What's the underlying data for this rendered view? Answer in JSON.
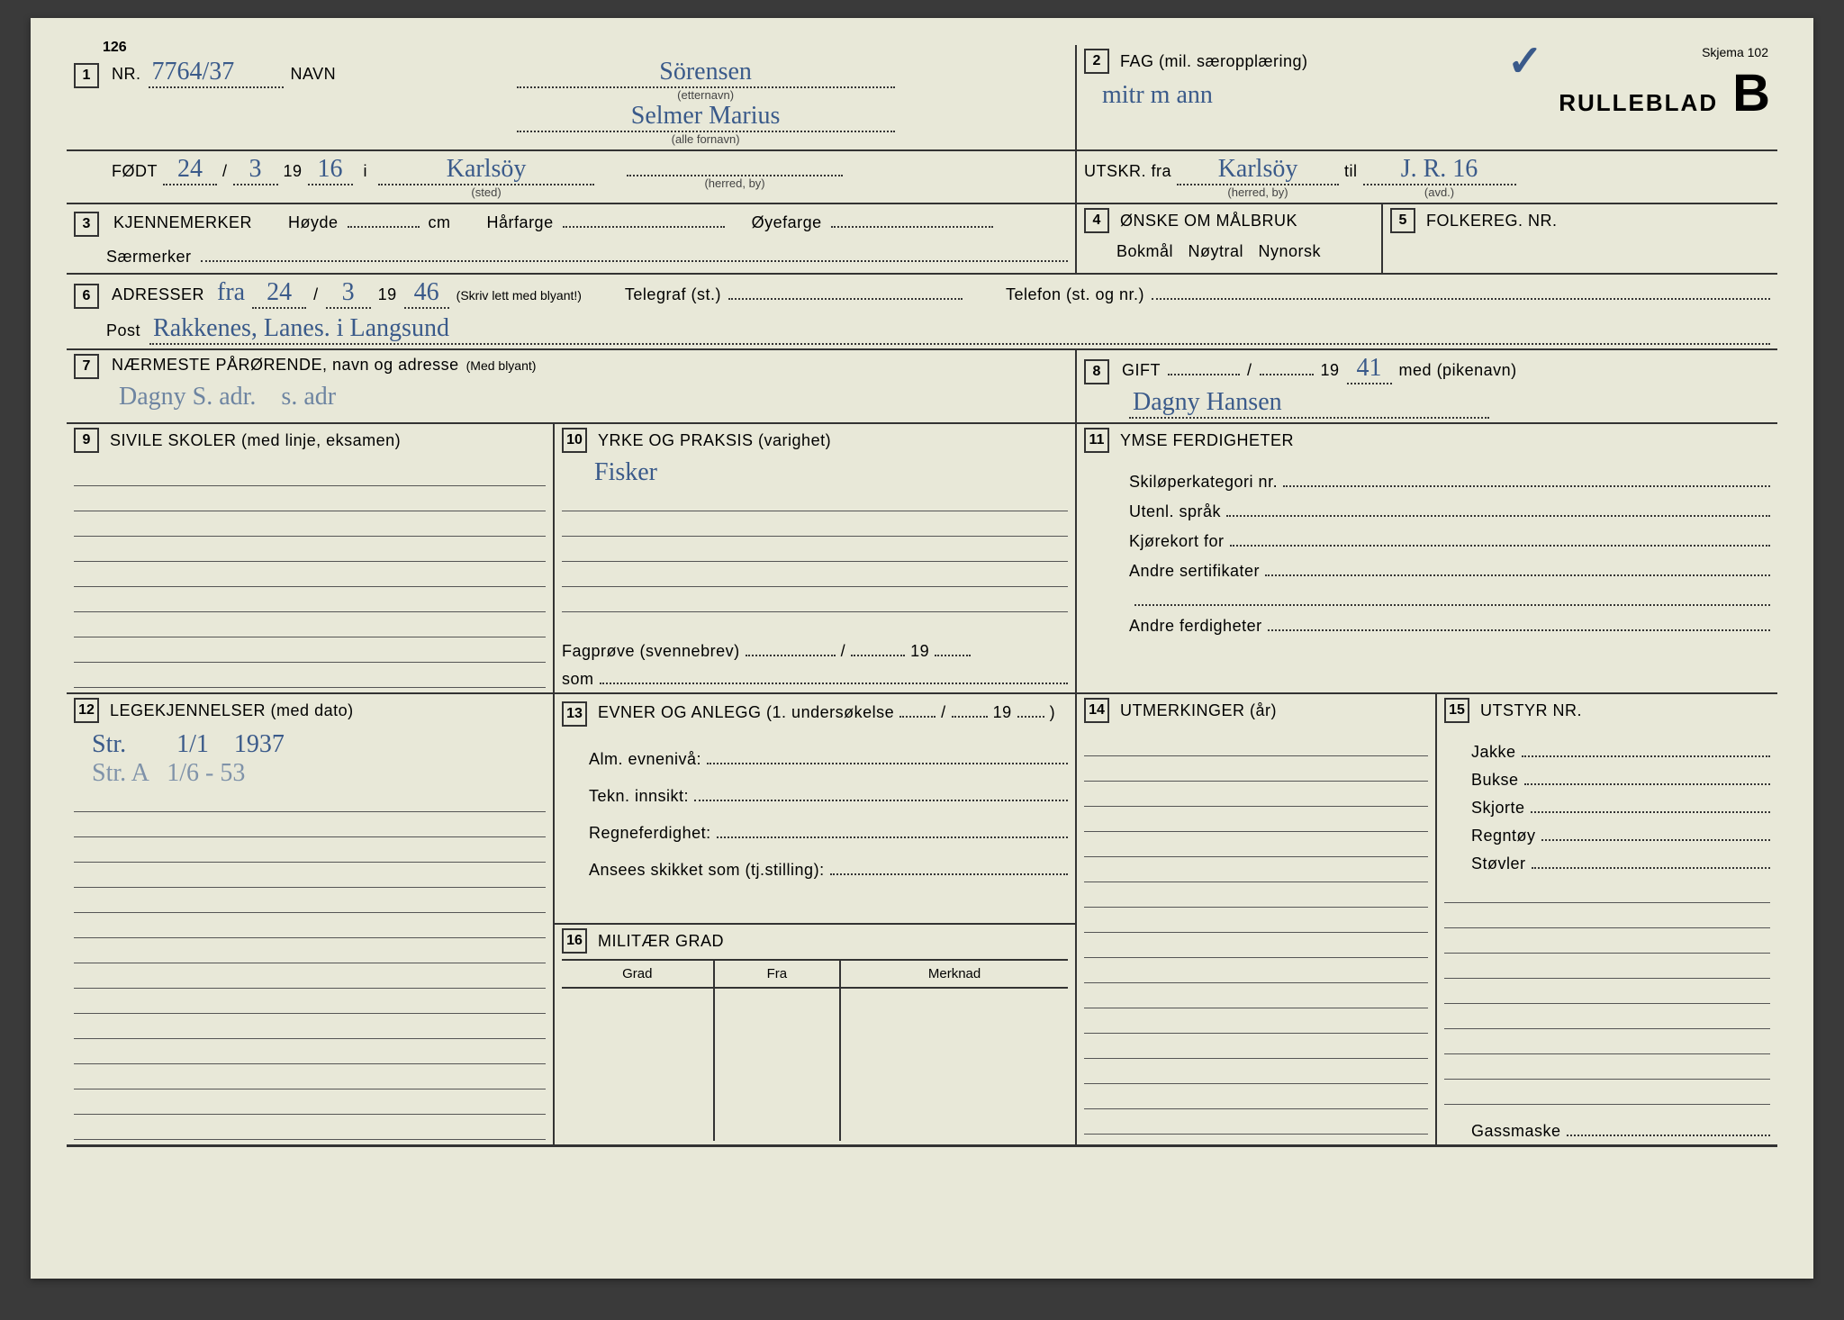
{
  "header": {
    "nr_small": "126",
    "nr_label": "NR.",
    "nr_value": "7764/37",
    "navn_label": "NAVN",
    "etternavn": "Sörensen",
    "etternavn_sub": "(etternavn)",
    "fornavn": "Selmer Marius",
    "fornavn_sub": "(alle fornavn)",
    "skjema": "Skjema 102",
    "rulleblad": "RULLEBLAD",
    "b": "B"
  },
  "s1": {
    "fodt_label": "FØDT",
    "fodt_day": "24",
    "fodt_month": "3",
    "fodt_year_prefix": "19",
    "fodt_year": "16",
    "i_label": "i",
    "sted": "Karlsöy",
    "sted_sub": "(sted)",
    "herred_sub": "(herred, by)"
  },
  "s2": {
    "fag_label": "FAG (mil. særopplæring)",
    "fag_value": "mitr m ann",
    "utskr_label": "UTSKR. fra",
    "utskr_fra": "Karlsöy",
    "herred_sub": "(herred, by)",
    "til_label": "til",
    "til_value": "J. R. 16",
    "avd_sub": "(avd.)"
  },
  "s3": {
    "label": "KJENNEMERKER",
    "hoyde": "Høyde",
    "cm": "cm",
    "harfarge": "Hårfarge",
    "oyefarge": "Øyefarge",
    "saermerker": "Særmerker"
  },
  "s4": {
    "label": "ØNSKE OM MÅLBRUK",
    "options": "Bokmål   Nøytral   Nynorsk"
  },
  "s5": {
    "label": "FOLKEREG. NR."
  },
  "s6": {
    "label": "ADRESSER",
    "fra": "fra",
    "fra_day": "24",
    "fra_month": "3",
    "fra_year_prefix": "19",
    "fra_year": "46",
    "hint": "(Skriv lett med blyant!)",
    "telegraf": "Telegraf (st.)",
    "telefon": "Telefon (st. og nr.)",
    "post_label": "Post",
    "post_value": "Rakkenes, Lanes. i Langsund"
  },
  "s7": {
    "label": "NÆRMESTE PÅRØRENDE, navn og adresse",
    "hint": "(Med blyant)",
    "value": "Dagny S. adr.    s. adr"
  },
  "s8": {
    "label": "GIFT",
    "year_prefix": "19",
    "year": "41",
    "med": "med (pikenavn)",
    "value": "Dagny Hansen"
  },
  "s9": {
    "label": "SIVILE SKOLER  (med linje, eksamen)"
  },
  "s10": {
    "label": "YRKE OG PRAKSIS (varighet)",
    "value": "Fisker",
    "fagprove": "Fagprøve (svennebrev)",
    "fagprove_year": "19",
    "som": "som"
  },
  "s11": {
    "label": "YMSE FERDIGHETER",
    "items": [
      "Skiløperkategori nr.",
      "Utenl. språk",
      "Kjørekort for",
      "Andre sertifikater",
      "",
      "Andre ferdigheter"
    ]
  },
  "s12": {
    "label": "LEGEKJENNELSER (med dato)",
    "line1": "Str.        1/1    1937",
    "line2": "Str. A   1/6 - 53"
  },
  "s13": {
    "label": "EVNER OG ANLEGG (1. undersøkelse",
    "suffix": "19",
    "items": [
      "Alm. evnenivå:",
      "Tekn. innsikt:",
      "Regneferdighet:",
      "Ansees skikket som (tj.stilling):"
    ]
  },
  "s14": {
    "label": "UTMERKINGER (år)"
  },
  "s15": {
    "label": "UTSTYR NR.",
    "items": [
      "Jakke",
      "Bukse",
      "Skjorte",
      "Regntøy",
      "Støvler"
    ],
    "bottom": "Gassmaske"
  },
  "s16": {
    "label": "MILITÆR GRAD",
    "cols": [
      "Grad",
      "Fra",
      "Merknad"
    ]
  }
}
